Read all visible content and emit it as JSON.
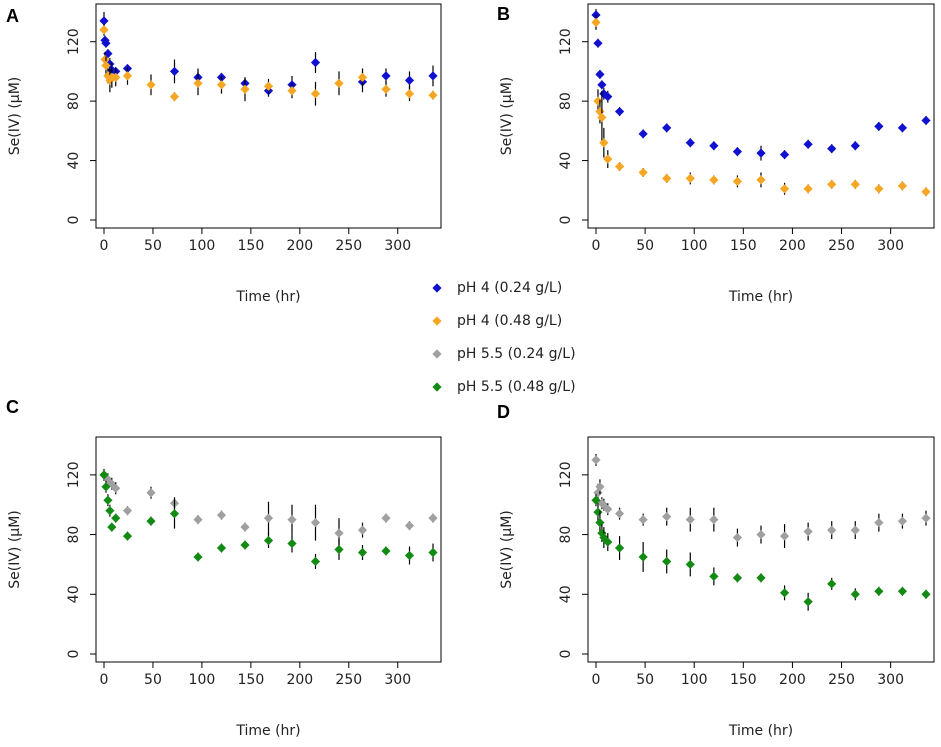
{
  "series_styles": [
    {
      "name": "pH 4 (0.24 g/L)",
      "color": "#1010d0"
    },
    {
      "name": "pH 4 (0.48 g/L)",
      "color": "#f5a623"
    },
    {
      "name": "pH 5.5 (0.24 g/L)",
      "color": "#a0a0a0"
    },
    {
      "name": "pH 5.5 (0.48 g/L)",
      "color": "#138a13"
    }
  ],
  "legend": {
    "items": [
      "pH 4 (0.24 g/L)",
      "pH 4 (0.48 g/L)",
      "pH 5.5 (0.24 g/L)",
      "pH 5.5 (0.48 g/L)"
    ],
    "placement": "center"
  },
  "chart_data": [
    {
      "panel": "A",
      "type": "scatter",
      "xlabel": "Time (hr)",
      "ylabel": "Se(IV) (μM)",
      "xlim": [
        0,
        336
      ],
      "ylim": [
        0,
        140
      ],
      "xticks": [
        0,
        50,
        100,
        150,
        200,
        250,
        300
      ],
      "yticks": [
        0,
        40,
        80,
        120
      ],
      "series": [
        {
          "name": "pH 4 (0.24 g/L)",
          "x": [
            0,
            1,
            2,
            4,
            6,
            8,
            12,
            24,
            72,
            96,
            120,
            144,
            168,
            192,
            216,
            264,
            288,
            312,
            336
          ],
          "y": [
            134,
            121,
            119,
            112,
            105,
            101,
            100,
            102,
            100,
            96,
            96,
            92,
            87,
            91,
            106,
            93,
            97,
            94,
            97
          ],
          "err": [
            6,
            3,
            3,
            3,
            4,
            5,
            3,
            2,
            8,
            6,
            3,
            4,
            4,
            6,
            7,
            7,
            5,
            6,
            7
          ]
        },
        {
          "name": "pH 4 (0.48 g/L)",
          "x": [
            0,
            1,
            2,
            4,
            6,
            8,
            12,
            24,
            48,
            72,
            96,
            120,
            144,
            168,
            192,
            216,
            240,
            264,
            288,
            312,
            336
          ],
          "y": [
            128,
            108,
            104,
            97,
            94,
            96,
            96,
            97,
            91,
            83,
            92,
            91,
            88,
            90,
            87,
            85,
            92,
            96,
            88,
            85,
            84
          ],
          "err": [
            4,
            5,
            6,
            5,
            8,
            7,
            6,
            6,
            7,
            3,
            8,
            6,
            8,
            5,
            5,
            8,
            8,
            6,
            5,
            5,
            3
          ]
        }
      ]
    },
    {
      "panel": "B",
      "type": "scatter",
      "xlabel": "Time (hr)",
      "ylabel": "Se(IV) (μM)",
      "xlim": [
        0,
        336
      ],
      "ylim": [
        0,
        140
      ],
      "xticks": [
        0,
        50,
        100,
        150,
        200,
        250,
        300
      ],
      "yticks": [
        0,
        40,
        80,
        120
      ],
      "series": [
        {
          "name": "pH 4 (0.24 g/L)",
          "x": [
            0,
            2,
            4,
            6,
            8,
            12,
            24,
            48,
            72,
            96,
            120,
            144,
            168,
            192,
            216,
            240,
            264,
            288,
            312,
            336
          ],
          "y": [
            138,
            119,
            98,
            91,
            85,
            83,
            73,
            58,
            62,
            52,
            50,
            46,
            45,
            44,
            51,
            48,
            50,
            63,
            62,
            67
          ],
          "err": [
            4,
            3,
            3,
            3,
            4,
            4,
            3,
            3,
            3,
            3,
            3,
            3,
            5,
            3,
            3,
            3,
            3,
            3,
            3,
            3
          ]
        },
        {
          "name": "pH 4 (0.48 g/L)",
          "x": [
            0,
            2,
            4,
            6,
            8,
            12,
            24,
            48,
            72,
            96,
            120,
            144,
            168,
            192,
            216,
            240,
            264,
            288,
            312,
            336
          ],
          "y": [
            133,
            80,
            73,
            69,
            52,
            41,
            36,
            32,
            28,
            28,
            27,
            26,
            27,
            21,
            21,
            24,
            24,
            21,
            23,
            19
          ],
          "err": [
            5,
            8,
            8,
            18,
            10,
            6,
            3,
            3,
            3,
            4,
            3,
            4,
            5,
            4,
            3,
            3,
            3,
            3,
            3,
            3
          ]
        }
      ]
    },
    {
      "panel": "C",
      "type": "scatter",
      "xlabel": "Time (hr)",
      "ylabel": "Se(IV) (μM)",
      "xlim": [
        0,
        336
      ],
      "ylim": [
        0,
        140
      ],
      "xticks": [
        0,
        50,
        100,
        150,
        200,
        250,
        300
      ],
      "yticks": [
        0,
        40,
        80,
        120
      ],
      "series": [
        {
          "name": "pH 5.5 (0.24 g/L)",
          "x": [
            0,
            4,
            8,
            12,
            24,
            48,
            72,
            96,
            120,
            144,
            168,
            192,
            216,
            240,
            264,
            288,
            312,
            336
          ],
          "y": [
            120,
            117,
            114,
            111,
            96,
            108,
            101,
            90,
            93,
            85,
            91,
            90,
            88,
            81,
            83,
            91,
            86,
            91
          ],
          "err": [
            4,
            4,
            4,
            4,
            3,
            4,
            4,
            3,
            3,
            3,
            11,
            10,
            12,
            10,
            5,
            3,
            3,
            3
          ]
        },
        {
          "name": "pH 5.5 (0.48 g/L)",
          "x": [
            0,
            2,
            4,
            6,
            8,
            12,
            24,
            48,
            72,
            96,
            120,
            144,
            168,
            192,
            216,
            240,
            264,
            288,
            312,
            336
          ],
          "y": [
            120,
            112,
            103,
            96,
            85,
            91,
            79,
            89,
            94,
            65,
            71,
            73,
            76,
            74,
            62,
            70,
            68,
            69,
            66,
            68
          ],
          "err": [
            3,
            4,
            4,
            4,
            3,
            3,
            3,
            3,
            10,
            3,
            3,
            3,
            5,
            6,
            5,
            7,
            5,
            3,
            6,
            6
          ]
        }
      ]
    },
    {
      "panel": "D",
      "type": "scatter",
      "xlabel": "Time (hr)",
      "ylabel": "Se(IV) (μM)",
      "xlim": [
        0,
        336
      ],
      "ylim": [
        0,
        140
      ],
      "xticks": [
        0,
        50,
        100,
        150,
        200,
        250,
        300
      ],
      "yticks": [
        0,
        40,
        80,
        120
      ],
      "series": [
        {
          "name": "pH 5.5 (0.24 g/L)",
          "x": [
            0,
            2,
            4,
            6,
            8,
            12,
            24,
            48,
            72,
            96,
            120,
            144,
            168,
            192,
            216,
            240,
            264,
            288,
            312,
            336
          ],
          "y": [
            130,
            108,
            112,
            101,
            100,
            97,
            94,
            90,
            92,
            90,
            90,
            78,
            80,
            79,
            82,
            83,
            83,
            88,
            89,
            91
          ],
          "err": [
            4,
            6,
            5,
            4,
            4,
            4,
            4,
            4,
            6,
            8,
            8,
            6,
            6,
            8,
            6,
            6,
            6,
            6,
            5,
            5
          ]
        },
        {
          "name": "pH 5.5 (0.48 g/L)",
          "x": [
            0,
            2,
            4,
            6,
            8,
            12,
            24,
            48,
            72,
            96,
            120,
            144,
            168,
            192,
            216,
            240,
            264,
            288,
            312,
            336
          ],
          "y": [
            103,
            95,
            88,
            81,
            78,
            75,
            71,
            65,
            62,
            60,
            52,
            51,
            51,
            41,
            35,
            47,
            40,
            42,
            42,
            40
          ],
          "err": [
            4,
            6,
            8,
            6,
            7,
            6,
            8,
            10,
            8,
            8,
            6,
            3,
            3,
            5,
            6,
            4,
            4,
            3,
            3,
            3
          ]
        }
      ]
    }
  ]
}
